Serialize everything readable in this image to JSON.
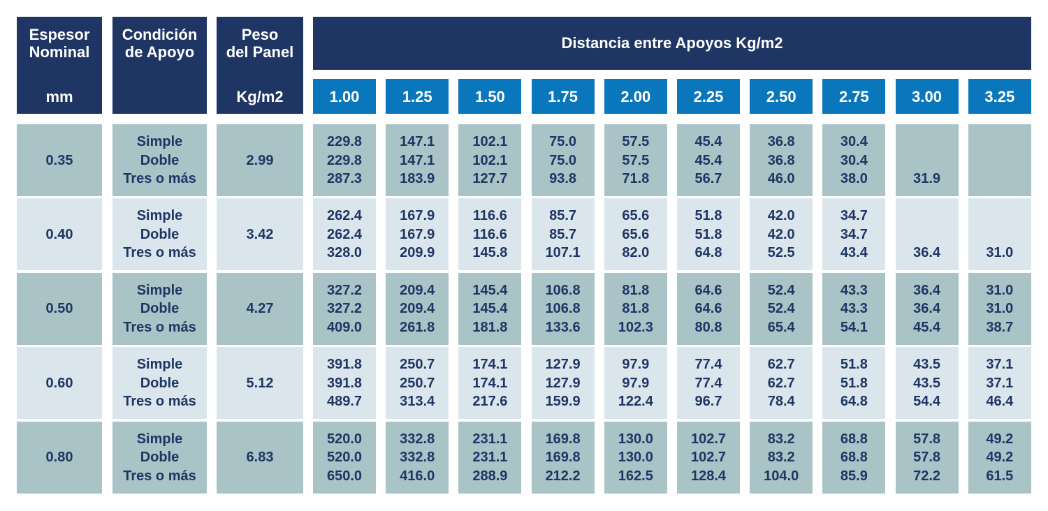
{
  "header": {
    "espesor": [
      "Espesor",
      "Nominal"
    ],
    "espesor_unit": "mm",
    "condicion": [
      "Condición",
      "de Apoyo"
    ],
    "peso": [
      "Peso",
      "del Panel"
    ],
    "peso_unit": "Kg/m2",
    "distancia": "Distancia entre Apoyos Kg/m2",
    "spans": [
      "1.00",
      "1.25",
      "1.50",
      "1.75",
      "2.00",
      "2.25",
      "2.50",
      "2.75",
      "3.00",
      "3.25"
    ]
  },
  "rows": [
    {
      "espesor": "0.35",
      "conditions": [
        "Simple",
        "Doble",
        "Tres o más"
      ],
      "peso": "2.99",
      "values": [
        [
          "229.8",
          "229.8",
          "287.3"
        ],
        [
          "147.1",
          "147.1",
          "183.9"
        ],
        [
          "102.1",
          "102.1",
          "127.7"
        ],
        [
          "75.0",
          "75.0",
          "93.8"
        ],
        [
          "57.5",
          "57.5",
          "71.8"
        ],
        [
          "45.4",
          "45.4",
          "56.7"
        ],
        [
          "36.8",
          "36.8",
          "46.0"
        ],
        [
          "30.4",
          "30.4",
          "38.0"
        ],
        [
          null,
          null,
          "31.9"
        ],
        [
          null,
          null,
          null
        ]
      ]
    },
    {
      "espesor": "0.40",
      "conditions": [
        "Simple",
        "Doble",
        "Tres o más"
      ],
      "peso": "3.42",
      "values": [
        [
          "262.4",
          "262.4",
          "328.0"
        ],
        [
          "167.9",
          "167.9",
          "209.9"
        ],
        [
          "116.6",
          "116.6",
          "145.8"
        ],
        [
          "85.7",
          "85.7",
          "107.1"
        ],
        [
          "65.6",
          "65.6",
          "82.0"
        ],
        [
          "51.8",
          "51.8",
          "64.8"
        ],
        [
          "42.0",
          "42.0",
          "52.5"
        ],
        [
          "34.7",
          "34.7",
          "43.4"
        ],
        [
          null,
          null,
          "36.4"
        ],
        [
          null,
          null,
          "31.0"
        ]
      ]
    },
    {
      "espesor": "0.50",
      "conditions": [
        "Simple",
        "Doble",
        "Tres o más"
      ],
      "peso": "4.27",
      "values": [
        [
          "327.2",
          "327.2",
          "409.0"
        ],
        [
          "209.4",
          "209.4",
          "261.8"
        ],
        [
          "145.4",
          "145.4",
          "181.8"
        ],
        [
          "106.8",
          "106.8",
          "133.6"
        ],
        [
          "81.8",
          "81.8",
          "102.3"
        ],
        [
          "64.6",
          "64.6",
          "80.8"
        ],
        [
          "52.4",
          "52.4",
          "65.4"
        ],
        [
          "43.3",
          "43.3",
          "54.1"
        ],
        [
          "36.4",
          "36.4",
          "45.4"
        ],
        [
          "31.0",
          "31.0",
          "38.7"
        ]
      ]
    },
    {
      "espesor": "0.60",
      "conditions": [
        "Simple",
        "Doble",
        "Tres o más"
      ],
      "peso": "5.12",
      "values": [
        [
          "391.8",
          "391.8",
          "489.7"
        ],
        [
          "250.7",
          "250.7",
          "313.4"
        ],
        [
          "174.1",
          "174.1",
          "217.6"
        ],
        [
          "127.9",
          "127.9",
          "159.9"
        ],
        [
          "97.9",
          "97.9",
          "122.4"
        ],
        [
          "77.4",
          "77.4",
          "96.7"
        ],
        [
          "62.7",
          "62.7",
          "78.4"
        ],
        [
          "51.8",
          "51.8",
          "64.8"
        ],
        [
          "43.5",
          "43.5",
          "54.4"
        ],
        [
          "37.1",
          "37.1",
          "46.4"
        ]
      ]
    },
    {
      "espesor": "0.80",
      "conditions": [
        "Simple",
        "Doble",
        "Tres o más"
      ],
      "peso": "6.83",
      "values": [
        [
          "520.0",
          "520.0",
          "650.0"
        ],
        [
          "332.8",
          "332.8",
          "416.0"
        ],
        [
          "231.1",
          "231.1",
          "288.9"
        ],
        [
          "169.8",
          "169.8",
          "212.2"
        ],
        [
          "130.0",
          "130.0",
          "162.5"
        ],
        [
          "102.7",
          "102.7",
          "128.4"
        ],
        [
          "83.2",
          "83.2",
          "104.0"
        ],
        [
          "68.8",
          "68.8",
          "85.9"
        ],
        [
          "57.8",
          "57.8",
          "72.2"
        ],
        [
          "49.2",
          "49.2",
          "61.5"
        ]
      ]
    }
  ]
}
